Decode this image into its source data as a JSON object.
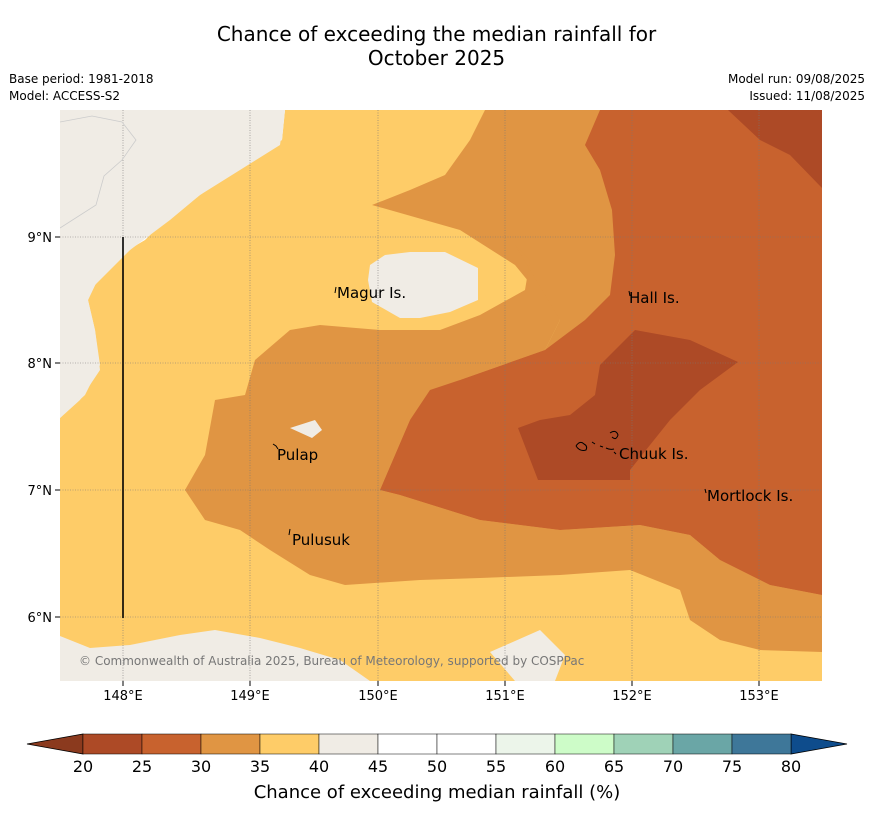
{
  "title_line1": "Chance of exceeding the median rainfall for",
  "title_line2": "October 2025",
  "base_period": "Base period: 1981-2018",
  "model": "Model: ACCESS-S2",
  "model_run": "Model run: 09/08/2025",
  "issued": "Issued: 11/08/2025",
  "copyright": "© Commonwealth of Australia 2025, Bureau of Meteorology, supported by COSPPac",
  "lon_labels": [
    "148°E",
    "149°E",
    "150°E",
    "151°E",
    "152°E",
    "153°E"
  ],
  "lat_labels": [
    "9°N",
    "8°N",
    "7°N",
    "6°N"
  ],
  "places": {
    "magur": "Magur Is.",
    "hall": "Hall Is.",
    "pulap": "Pulap",
    "chuuk": "Chuuk Is.",
    "mortlock": "Mortlock Is.",
    "pulusuk": "Pulusuk"
  },
  "colorbar": {
    "title": "Chance of exceeding median rainfall (%)",
    "ticks": [
      "20",
      "25",
      "30",
      "35",
      "40",
      "45",
      "50",
      "55",
      "60",
      "65",
      "70",
      "75",
      "80"
    ],
    "colors": [
      "#ad4a26",
      "#c8622e",
      "#e09543",
      "#fecc68",
      "#f0ece5",
      "#ffffff",
      "#ffffff",
      "#ecf5ea",
      "#cdfcc8",
      "#9fd2b7",
      "#6aa6a6",
      "#3e7799"
    ],
    "under_color": "#8b3a1e",
    "over_color": "#0e4c8c"
  }
}
